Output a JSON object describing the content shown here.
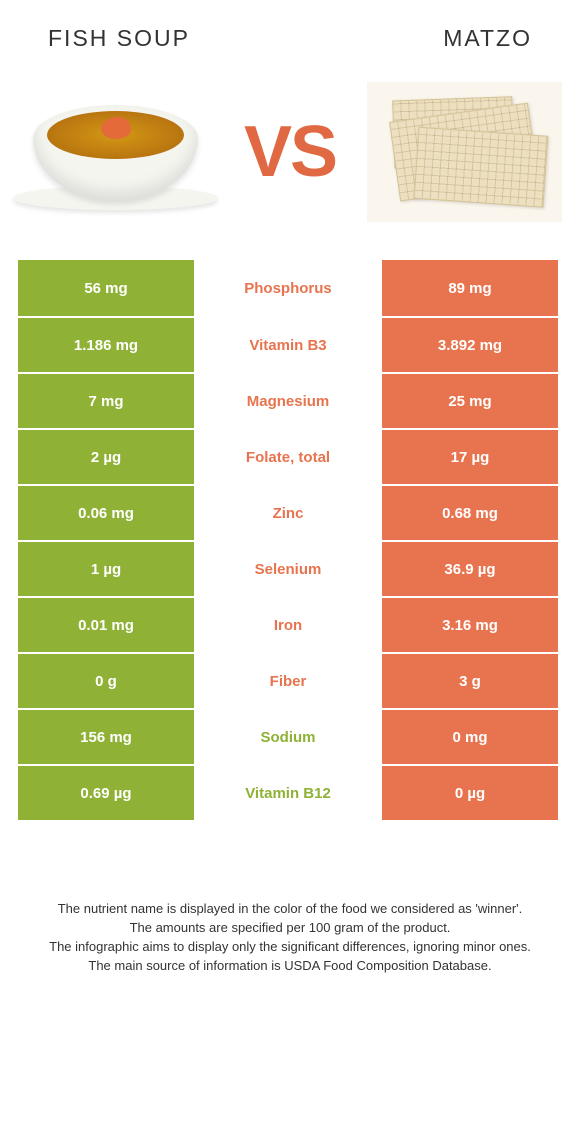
{
  "food_left": {
    "title": "Fish soup",
    "color": "#8fb135"
  },
  "food_right": {
    "title": "Matzo",
    "color": "#e8744f"
  },
  "vs_label": "VS",
  "vs_color": "#e06843",
  "nutrients": [
    {
      "name": "Phosphorus",
      "left": "56 mg",
      "right": "89 mg",
      "winner": "right"
    },
    {
      "name": "Vitamin B3",
      "left": "1.186 mg",
      "right": "3.892 mg",
      "winner": "right"
    },
    {
      "name": "Magnesium",
      "left": "7 mg",
      "right": "25 mg",
      "winner": "right"
    },
    {
      "name": "Folate, total",
      "left": "2 µg",
      "right": "17 µg",
      "winner": "right"
    },
    {
      "name": "Zinc",
      "left": "0.06 mg",
      "right": "0.68 mg",
      "winner": "right"
    },
    {
      "name": "Selenium",
      "left": "1 µg",
      "right": "36.9 µg",
      "winner": "right"
    },
    {
      "name": "Iron",
      "left": "0.01 mg",
      "right": "3.16 mg",
      "winner": "right"
    },
    {
      "name": "Fiber",
      "left": "0 g",
      "right": "3 g",
      "winner": "right"
    },
    {
      "name": "Sodium",
      "left": "156 mg",
      "right": "0 mg",
      "winner": "left"
    },
    {
      "name": "Vitamin B12",
      "left": "0.69 µg",
      "right": "0 µg",
      "winner": "left"
    }
  ],
  "footnotes": [
    "The nutrient name is displayed in the color of the food we considered as 'winner'.",
    "The amounts are specified per 100 gram of the product.",
    "The infographic aims to display only the significant differences, ignoring minor ones.",
    "The main source of information is USDA Food Composition Database."
  ]
}
